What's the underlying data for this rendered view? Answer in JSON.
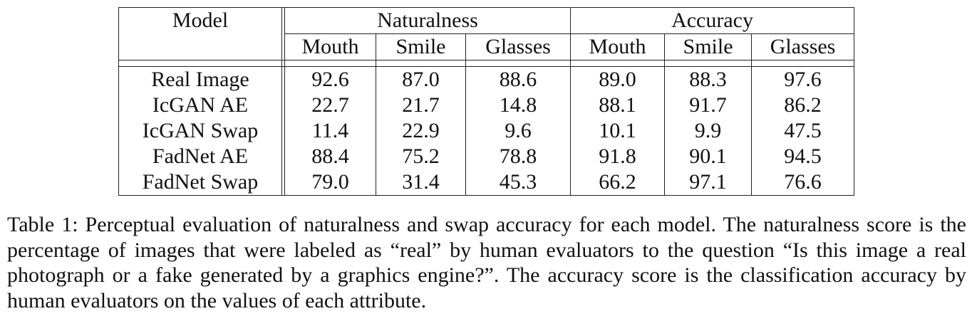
{
  "table": {
    "model_header": "Model",
    "groups": [
      {
        "label": "Naturalness",
        "subcolumns": [
          "Mouth",
          "Smile",
          "Glasses"
        ]
      },
      {
        "label": "Accuracy",
        "subcolumns": [
          "Mouth",
          "Smile",
          "Glasses"
        ]
      }
    ],
    "rows": [
      {
        "model": "Real Image",
        "values": [
          "92.6",
          "87.0",
          "88.6",
          "89.0",
          "88.3",
          "97.6"
        ]
      },
      {
        "model": "IcGAN AE",
        "values": [
          "22.7",
          "21.7",
          "14.8",
          "88.1",
          "91.7",
          "86.2"
        ]
      },
      {
        "model": "IcGAN Swap",
        "values": [
          "11.4",
          "22.9",
          "9.6",
          "10.1",
          "9.9",
          "47.5"
        ]
      },
      {
        "model": "FadNet AE",
        "values": [
          "88.4",
          "75.2",
          "78.8",
          "91.8",
          "90.1",
          "94.5"
        ]
      },
      {
        "model": "FadNet Swap",
        "values": [
          "79.0",
          "31.4",
          "45.3",
          "66.2",
          "97.1",
          "76.6"
        ]
      }
    ]
  },
  "caption": "Table 1: Perceptual evaluation of naturalness and swap accuracy for each model. The naturalness score is the percentage of images that were labeled as “real” by human evaluators to the question “Is this image a real photograph or a fake generated by a graphics engine?”. The accuracy score is the classification accuracy by human evaluators on the values of each attribute."
}
